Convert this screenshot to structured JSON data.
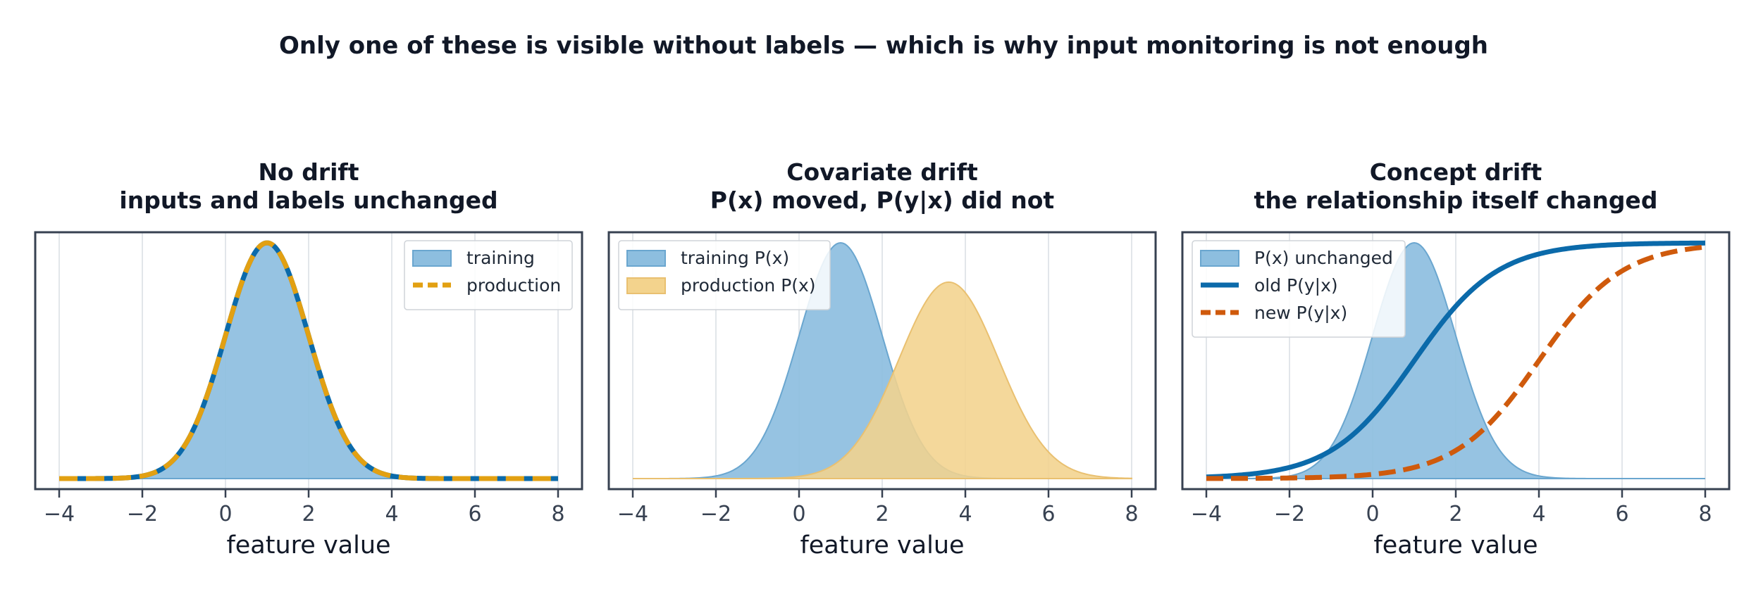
{
  "figure": {
    "suptitle": "Only one of these is visible without labels — which is why input monitoring is not enough"
  },
  "colors": {
    "blue_fill": "#8dbedf",
    "blue_edge": "#6aa6cf",
    "blue_line": "#0b6aaa",
    "gold": "#e2a012",
    "gold_fill": "#f3d38d",
    "orange": "#cf5a0c",
    "spine": "#374151",
    "grid": "#d9dde3"
  },
  "chart_data": [
    {
      "type": "area",
      "title": "No drift",
      "subtitle": "inputs and labels unchanged",
      "xlabel": "feature value",
      "ylabel": "",
      "xlim": [
        -4,
        8
      ],
      "xticks": [
        -4,
        -2,
        0,
        2,
        4,
        6,
        8
      ],
      "xtick_labels": [
        "−4",
        "−2",
        "0",
        "2",
        "4",
        "6",
        "8"
      ],
      "grid": "vertical",
      "legend_position": "upper right",
      "series": [
        {
          "name": "training",
          "kind": "density-fill",
          "mean": 1.0,
          "sd": 1.0,
          "color": "#8dbedf",
          "edge": "#6aa6cf"
        },
        {
          "name": "production",
          "kind": "density-line",
          "mean": 1.0,
          "sd": 1.0,
          "color": "#e2a012",
          "underline": "#0b6aaa",
          "style": "dashed"
        }
      ]
    },
    {
      "type": "area",
      "title": "Covariate drift",
      "subtitle": "P(x) moved, P(y|x) did not",
      "xlabel": "feature value",
      "ylabel": "",
      "xlim": [
        -4,
        8
      ],
      "xticks": [
        -4,
        -2,
        0,
        2,
        4,
        6,
        8
      ],
      "xtick_labels": [
        "−4",
        "−2",
        "0",
        "2",
        "4",
        "6",
        "8"
      ],
      "grid": "vertical",
      "legend_position": "upper left",
      "series": [
        {
          "name": "training P(x)",
          "kind": "density-fill",
          "mean": 1.0,
          "sd": 1.0,
          "color": "#8dbedf",
          "edge": "#6aa6cf"
        },
        {
          "name": "production P(x)",
          "kind": "density-fill",
          "mean": 3.6,
          "sd": 1.2,
          "color": "#f3d38d",
          "edge": "#e9c070"
        }
      ]
    },
    {
      "type": "line",
      "title": "Concept drift",
      "subtitle": "the relationship itself changed",
      "xlabel": "feature value",
      "ylabel": "",
      "xlim": [
        -4,
        8
      ],
      "xticks": [
        -4,
        -2,
        0,
        2,
        4,
        6,
        8
      ],
      "xtick_labels": [
        "−4",
        "−2",
        "0",
        "2",
        "4",
        "6",
        "8"
      ],
      "grid": "vertical",
      "legend_position": "upper left",
      "series": [
        {
          "name": "P(x) unchanged",
          "kind": "density-fill",
          "mean": 1.0,
          "sd": 1.0,
          "color": "#8dbedf",
          "edge": "#6aa6cf"
        },
        {
          "name": "old P(y|x)",
          "kind": "sigmoid",
          "center": 1.0,
          "scale": 1.0,
          "color": "#0b6aaa",
          "style": "solid"
        },
        {
          "name": "new P(y|x)",
          "kind": "sigmoid",
          "center": 4.0,
          "scale": 1.0,
          "color": "#cf5a0c",
          "style": "dashed"
        }
      ]
    }
  ]
}
